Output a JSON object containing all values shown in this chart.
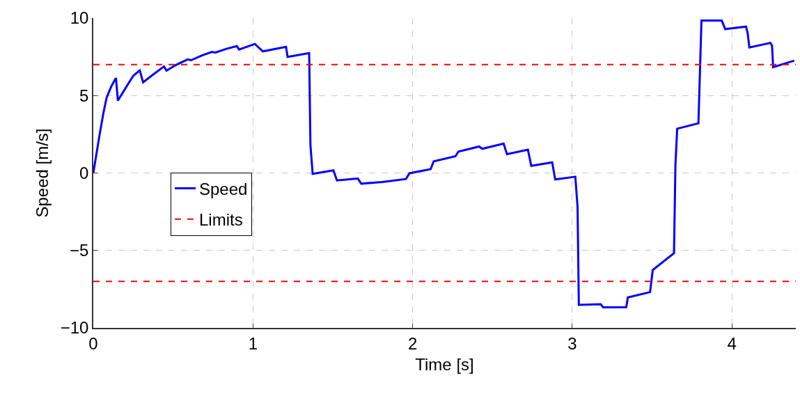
{
  "chart_data": {
    "type": "line",
    "xlabel": "Time [s]",
    "ylabel": "Speed [m/s]",
    "xlim": [
      0,
      4.4
    ],
    "xticks": [
      0,
      1,
      2,
      3,
      4
    ],
    "ylim": [
      -10,
      10
    ],
    "yticks": [
      {
        "value": -10,
        "label": "−10"
      },
      {
        "value": -5,
        "label": "−5"
      },
      0,
      5,
      10
    ],
    "grid": true,
    "legend": "left",
    "marker": "none",
    "line_style": "solid",
    "series": [
      {
        "name": "Speed",
        "color": "#0000ff",
        "x": [
          0,
          0.04,
          0.062,
          0.083,
          0.113,
          0.142,
          0.154,
          0.214,
          0.251,
          0.291,
          0.312,
          0.374,
          0.443,
          0.458,
          0.519,
          0.591,
          0.613,
          0.678,
          0.743,
          0.765,
          0.838,
          0.899,
          0.913,
          1.012,
          1.062,
          1.207,
          1.217,
          1.352,
          1.36,
          1.374,
          1.504,
          1.526,
          1.657,
          1.678,
          1.809,
          1.958,
          1.98,
          2.113,
          2.132,
          2.268,
          2.287,
          2.417,
          2.436,
          2.57,
          2.591,
          2.722,
          2.743,
          2.874,
          2.893,
          3.019,
          3.033,
          3.041,
          3.178,
          3.193,
          3.338,
          3.348,
          3.487,
          3.504,
          3.637,
          3.646,
          3.657,
          3.79,
          3.809,
          3.936,
          3.958,
          4.088,
          4.098,
          4.109,
          4.241,
          4.251,
          4.258,
          4.39
        ],
        "values": [
          0,
          2.5,
          3.8,
          4.85,
          5.6,
          6.13,
          4.67,
          5.68,
          6.28,
          6.62,
          5.86,
          6.35,
          6.88,
          6.61,
          6.98,
          7.33,
          7.28,
          7.58,
          7.82,
          7.78,
          8.03,
          8.19,
          7.97,
          8.33,
          7.85,
          8.15,
          7.49,
          7.74,
          1.8,
          -0.06,
          0.17,
          -0.48,
          -0.36,
          -0.69,
          -0.58,
          -0.39,
          -0.02,
          0.25,
          0.75,
          1.08,
          1.38,
          1.71,
          1.56,
          1.9,
          1.21,
          1.5,
          0.46,
          0.69,
          -0.42,
          -0.24,
          -2.19,
          -8.52,
          -8.47,
          -8.67,
          -8.66,
          -8.03,
          -7.69,
          -6.26,
          -5.18,
          0.51,
          2.86,
          3.21,
          9.84,
          9.84,
          9.29,
          9.45,
          9.05,
          8.1,
          8.4,
          8.22,
          6.83,
          7.25
        ]
      }
    ],
    "ref_lines": [
      {
        "axis": "y",
        "value": 7,
        "label": "Limits",
        "color": "#ff0000",
        "line_style": "dashed"
      },
      {
        "axis": "y",
        "value": -7,
        "color": "#ff0000",
        "line_style": "dashed"
      }
    ]
  }
}
